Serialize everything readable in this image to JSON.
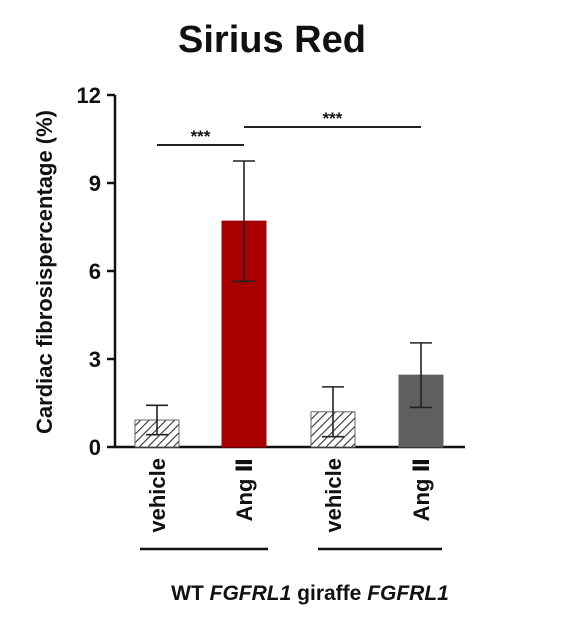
{
  "chart_data": {
    "type": "bar",
    "title": "Sirius Red",
    "y_label": "Cardiac fibrosispercentage (%)",
    "categories": [
      "vehicle",
      "Ang Ⅱ",
      "vehicle",
      "Ang Ⅱ"
    ],
    "values": [
      0.92,
      7.7,
      1.2,
      2.45
    ],
    "errors": [
      0.5,
      2.05,
      0.85,
      1.1
    ],
    "colors": [
      "#d8d8d8",
      "#a60000",
      "#d8d8d8",
      "#5f5f5f"
    ],
    "hatched": [
      true,
      false,
      true,
      false
    ],
    "groups": [
      {
        "label": "WT",
        "gene": "FGFRL1"
      },
      {
        "label": "giraffe",
        "gene": "FGFRL1"
      }
    ],
    "annotations": [
      "***",
      "***"
    ],
    "ylim": [
      0,
      12
    ],
    "yticks": [
      0,
      3,
      6,
      9,
      12
    ]
  }
}
